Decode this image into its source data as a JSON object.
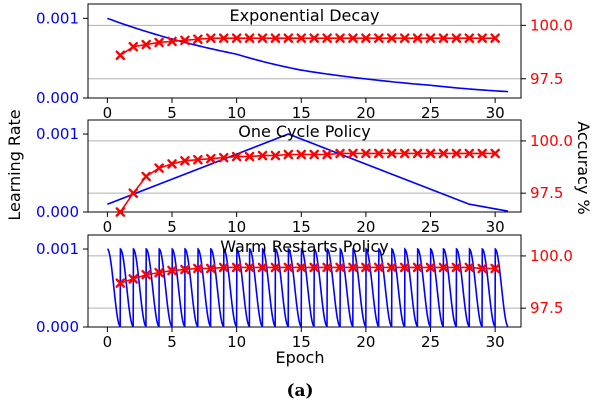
{
  "figure": {
    "ylabel_left": "Learning Rate",
    "ylabel_right": "Accuracy %",
    "xlabel": "Epoch",
    "caption": "(a)"
  },
  "colors": {
    "lr": "#0000ff",
    "acc": "#ff0000",
    "grid": "#b0b0b0"
  },
  "chart_data": [
    {
      "type": "line",
      "title": "Exponential Decay",
      "xlim": [
        -1.5,
        32
      ],
      "x_ticks": [
        "0",
        "5",
        "10",
        "15",
        "20",
        "25",
        "30"
      ],
      "left_axis": {
        "ylim": [
          0,
          0.00118
        ],
        "ticks": [
          "0.000",
          "0.001"
        ],
        "tick_values": [
          0,
          0.001
        ]
      },
      "right_axis": {
        "ylim": [
          96.6,
          101.0
        ],
        "ticks": [
          "97.5",
          "100.0"
        ],
        "tick_values": [
          97.5,
          100.0
        ]
      },
      "series": [
        {
          "axis": "left",
          "curve": "exponential",
          "x": [
            0,
            5,
            10,
            15,
            20,
            25,
            31
          ],
          "values": [
            0.001,
            0.00074,
            0.00055,
            0.00035,
            0.00024,
            0.00016,
            8e-05
          ]
        },
        {
          "axis": "right",
          "marker": "x",
          "x": [
            1,
            2,
            3,
            4,
            5,
            6,
            7,
            8,
            9,
            10,
            11,
            12,
            13,
            14,
            15,
            16,
            17,
            18,
            19,
            20,
            21,
            22,
            23,
            24,
            25,
            26,
            27,
            28,
            29,
            30
          ],
          "values": [
            98.6,
            99.0,
            99.1,
            99.2,
            99.25,
            99.3,
            99.35,
            99.4,
            99.4,
            99.4,
            99.4,
            99.4,
            99.4,
            99.4,
            99.4,
            99.4,
            99.4,
            99.4,
            99.4,
            99.4,
            99.4,
            99.4,
            99.4,
            99.4,
            99.4,
            99.4,
            99.4,
            99.4,
            99.4,
            99.4
          ]
        }
      ]
    },
    {
      "type": "line",
      "title": "One Cycle Policy",
      "xlim": [
        -1.5,
        32
      ],
      "x_ticks": [
        "0",
        "5",
        "10",
        "15",
        "20",
        "25",
        "30"
      ],
      "left_axis": {
        "ylim": [
          0,
          0.00118
        ],
        "ticks": [
          "0.000",
          "0.001"
        ],
        "tick_values": [
          0,
          0.001
        ]
      },
      "right_axis": {
        "ylim": [
          96.6,
          101.0
        ],
        "ticks": [
          "97.5",
          "100.0"
        ],
        "tick_values": [
          97.5,
          100.0
        ]
      },
      "series": [
        {
          "axis": "left",
          "curve": "linear",
          "x": [
            0,
            14,
            28,
            31
          ],
          "values": [
            0.0001,
            0.001,
            0.0001,
            1e-05
          ]
        },
        {
          "axis": "right",
          "marker": "x",
          "x": [
            1,
            2,
            3,
            4,
            5,
            6,
            7,
            8,
            9,
            10,
            11,
            12,
            13,
            14,
            15,
            16,
            17,
            18,
            19,
            20,
            21,
            22,
            23,
            24,
            25,
            26,
            27,
            28,
            29,
            30
          ],
          "values": [
            96.6,
            97.5,
            98.3,
            98.7,
            98.9,
            99.05,
            99.1,
            99.15,
            99.2,
            99.25,
            99.25,
            99.3,
            99.3,
            99.35,
            99.35,
            99.35,
            99.35,
            99.4,
            99.4,
            99.4,
            99.4,
            99.4,
            99.4,
            99.4,
            99.4,
            99.4,
            99.4,
            99.4,
            99.4,
            99.4
          ]
        }
      ]
    },
    {
      "type": "line",
      "title": "Warm Restarts Policy",
      "xlim": [
        -1.5,
        32
      ],
      "x_ticks": [
        "0",
        "5",
        "10",
        "15",
        "20",
        "25",
        "30"
      ],
      "left_axis": {
        "ylim": [
          0,
          0.00118
        ],
        "ticks": [
          "0.000",
          "0.001"
        ],
        "tick_values": [
          0,
          0.001
        ]
      },
      "right_axis": {
        "ylim": [
          96.6,
          101.0
        ],
        "ticks": [
          "97.5",
          "100.0"
        ],
        "tick_values": [
          97.5,
          100.0
        ]
      },
      "series": [
        {
          "axis": "left",
          "curve": "cosine_restarts",
          "x_range": [
            0,
            31
          ],
          "period": 1,
          "values": [
            0.001,
            1e-05
          ]
        },
        {
          "axis": "right",
          "marker": "x",
          "x": [
            1,
            2,
            3,
            4,
            5,
            6,
            7,
            8,
            9,
            10,
            11,
            12,
            13,
            14,
            15,
            16,
            17,
            18,
            19,
            20,
            21,
            22,
            23,
            24,
            25,
            26,
            27,
            28,
            29,
            30
          ],
          "values": [
            98.7,
            98.9,
            99.1,
            99.2,
            99.3,
            99.35,
            99.4,
            99.4,
            99.45,
            99.45,
            99.45,
            99.45,
            99.45,
            99.45,
            99.45,
            99.45,
            99.45,
            99.45,
            99.45,
            99.45,
            99.45,
            99.45,
            99.45,
            99.45,
            99.45,
            99.45,
            99.45,
            99.45,
            99.4,
            99.4
          ]
        }
      ]
    }
  ]
}
